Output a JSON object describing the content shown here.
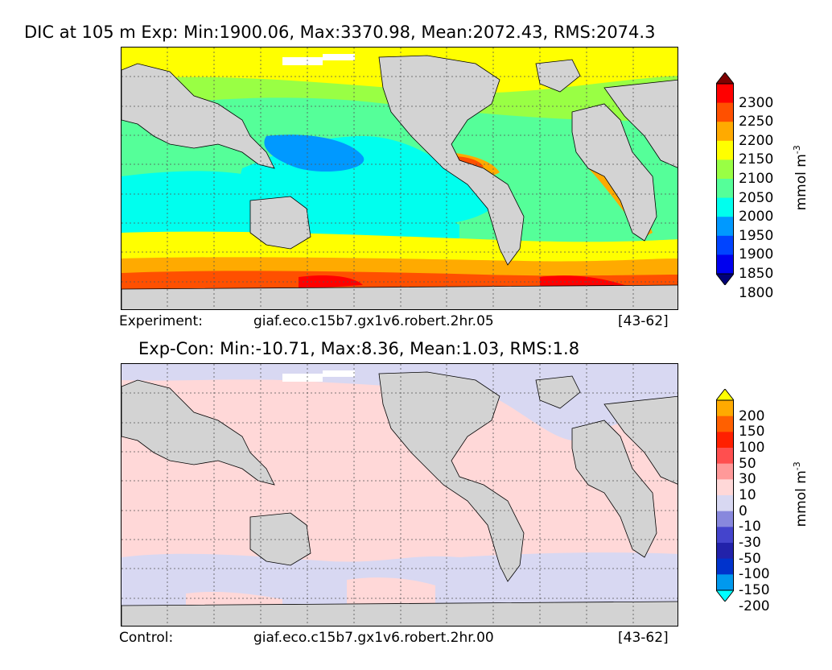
{
  "top": {
    "title": "DIC at 105 m Exp: Min:1900.06, Max:3370.98, Mean:2072.43, RMS:2074.3",
    "footer_left": "Experiment:",
    "footer_mid": "giaf.eco.c15b7.gx1v6.robert.2hr.05",
    "footer_right": "[43-62]",
    "colorbar": {
      "unit": "mmol m",
      "unit_sup": "-3",
      "ticks": [
        "2300",
        "2250",
        "2200",
        "2150",
        "2100",
        "2050",
        "2000",
        "1950",
        "1900",
        "1850",
        "1800"
      ],
      "colors": [
        "#7f0000",
        "#ff0000",
        "#ff5000",
        "#ffaa00",
        "#ffff00",
        "#99ff44",
        "#55ff99",
        "#00ffee",
        "#0099ff",
        "#0044ff",
        "#0000ee",
        "#000077"
      ]
    }
  },
  "bottom": {
    "title": "Exp-Con: Min:-10.71, Max:8.36, Mean:1.03, RMS:1.8",
    "footer_left": "Control:",
    "footer_mid": "giaf.eco.c15b7.gx1v6.robert.2hr.00",
    "footer_right": "[43-62]",
    "colorbar": {
      "unit": "mmol m",
      "unit_sup": "-3",
      "ticks": [
        "200",
        "150",
        "100",
        "50",
        "30",
        "10",
        "0",
        "-10",
        "-30",
        "-50",
        "-100",
        "-150",
        "-200"
      ],
      "colors": [
        "#ffff00",
        "#ffaa00",
        "#ff6000",
        "#ff2000",
        "#ff4f4f",
        "#ff9999",
        "#ffd8d8",
        "#d8d8f2",
        "#8888dd",
        "#4444cc",
        "#2222aa",
        "#0033cc",
        "#0099ee",
        "#00ffff"
      ]
    }
  },
  "colors": {
    "land": "#d3d3d3",
    "ice": "#ffffff",
    "grid": "#555555"
  }
}
